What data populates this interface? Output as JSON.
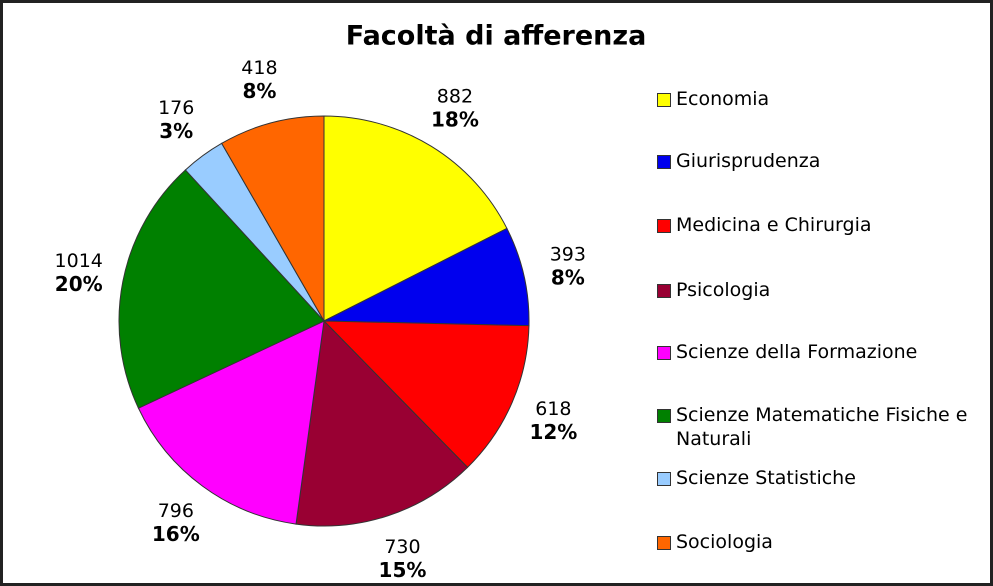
{
  "chart_data": {
    "type": "pie",
    "title": "Facoltà di afferenza",
    "categories": [
      "Economia",
      "Giurisprudenza",
      "Medicina e Chirurgia",
      "Psicologia",
      "Scienze della Formazione",
      "Scienze Matematiche Fisiche e Naturali",
      "Scienze Statistiche",
      "Sociologia"
    ],
    "values": [
      882,
      393,
      618,
      730,
      796,
      1014,
      176,
      418
    ],
    "percent_labels": [
      "18%",
      "8%",
      "12%",
      "15%",
      "16%",
      "20%",
      "3%",
      "8%"
    ],
    "colors": [
      "#ffff00",
      "#0000ee",
      "#ff0000",
      "#990033",
      "#ff00ff",
      "#008000",
      "#99ccff",
      "#ff6600"
    ],
    "legend": "right"
  }
}
